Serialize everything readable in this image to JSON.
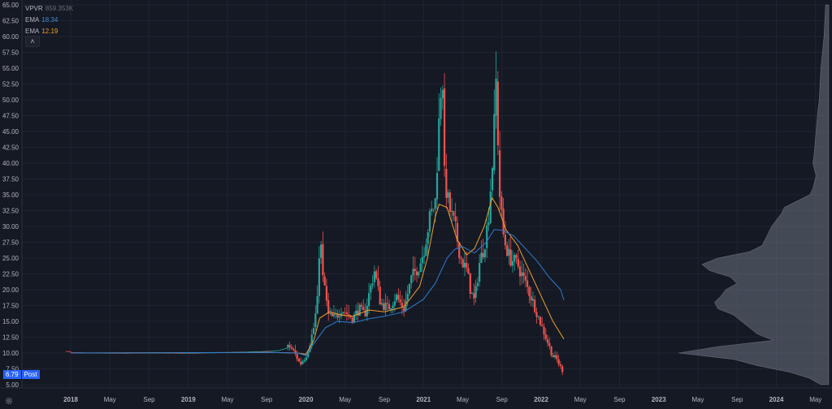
{
  "legend": {
    "vpvr": {
      "label": "VPVR",
      "value": "859.353K"
    },
    "ema_fast": {
      "label": "EMA",
      "value": "18.34"
    },
    "ema_slow": {
      "label": "EMA",
      "value": "12.19"
    },
    "collapse_icon": "chevron-up-icon"
  },
  "last_price": {
    "price": "6.79",
    "session": "Post"
  },
  "colors": {
    "background": "#151924",
    "grid": "#1f2431",
    "axis_text": "#b2b5be",
    "up": "#26a69a",
    "down": "#ef5350",
    "ema_fast": "#2e7bd1",
    "ema_slow": "#f2a12e",
    "volume_profile": "#6b7180",
    "badge": "#2962ff"
  },
  "chart_data": {
    "type": "candlestick",
    "y_axis": {
      "ylim": [
        5,
        65
      ],
      "ticks": [
        "5.00",
        "7.50",
        "10.00",
        "12.50",
        "15.00",
        "17.50",
        "20.00",
        "22.50",
        "25.00",
        "27.50",
        "30.00",
        "32.50",
        "35.00",
        "37.50",
        "40.00",
        "42.50",
        "45.00",
        "47.50",
        "50.00",
        "52.50",
        "55.00",
        "57.50",
        "60.00",
        "62.50",
        "65.00"
      ]
    },
    "x_axis": {
      "ticks": [
        "2018",
        "May",
        "Sep",
        "2019",
        "May",
        "Sep",
        "2020",
        "May",
        "Sep",
        "2021",
        "May",
        "Sep",
        "2022",
        "May",
        "Sep",
        "2023",
        "May",
        "Sep",
        "2024",
        "May"
      ],
      "tick_index": [
        0,
        1,
        2,
        3,
        4,
        5,
        6,
        7,
        8,
        9,
        10,
        11,
        12,
        13,
        14,
        15,
        16,
        17,
        18,
        19
      ]
    },
    "ohlc_keypoints": [
      [
        -0.1,
        10.3
      ],
      [
        0.0,
        10.1
      ],
      [
        1.0,
        10.0
      ],
      [
        2.0,
        10.05
      ],
      [
        3.0,
        10.0
      ],
      [
        4.0,
        10.1
      ],
      [
        5.0,
        10.3
      ],
      [
        5.3,
        10.4
      ],
      [
        5.6,
        11.0
      ],
      [
        5.75,
        9.6
      ],
      [
        5.85,
        8.2
      ],
      [
        6.0,
        9.5
      ],
      [
        6.1,
        11.5
      ],
      [
        6.2,
        14.0
      ],
      [
        6.3,
        18.5
      ],
      [
        6.36,
        30.0
      ],
      [
        6.42,
        22.0
      ],
      [
        6.5,
        20.0
      ],
      [
        6.55,
        16.0
      ],
      [
        6.7,
        15.5
      ],
      [
        6.8,
        16.0
      ],
      [
        6.9,
        17.0
      ],
      [
        7.0,
        16.5
      ],
      [
        7.2,
        15.5
      ],
      [
        7.35,
        17.0
      ],
      [
        7.5,
        16.0
      ],
      [
        7.6,
        19.0
      ],
      [
        7.75,
        23.0
      ],
      [
        7.9,
        18.0
      ],
      [
        8.1,
        17.0
      ],
      [
        8.3,
        19.0
      ],
      [
        8.5,
        17.0
      ],
      [
        8.7,
        22.0
      ],
      [
        8.9,
        24.0
      ],
      [
        9.0,
        26.0
      ],
      [
        9.15,
        31.0
      ],
      [
        9.3,
        34.0
      ],
      [
        9.4,
        47.0
      ],
      [
        9.48,
        56.0
      ],
      [
        9.53,
        38.0
      ],
      [
        9.65,
        33.0
      ],
      [
        9.8,
        30.0
      ],
      [
        9.95,
        25.0
      ],
      [
        10.1,
        23.0
      ],
      [
        10.2,
        20.0
      ],
      [
        10.3,
        18.0
      ],
      [
        10.42,
        24.0
      ],
      [
        10.55,
        27.0
      ],
      [
        10.65,
        31.0
      ],
      [
        10.78,
        42.0
      ],
      [
        10.85,
        53.0
      ],
      [
        10.95,
        34.0
      ],
      [
        11.05,
        28.0
      ],
      [
        11.2,
        25.0
      ],
      [
        11.4,
        24.0
      ],
      [
        11.6,
        21.0
      ],
      [
        11.8,
        18.0
      ],
      [
        12.0,
        14.5
      ],
      [
        12.15,
        12.0
      ],
      [
        12.3,
        9.5
      ],
      [
        12.4,
        9.0
      ],
      [
        12.5,
        7.7
      ],
      [
        12.55,
        7.2
      ],
      [
        12.58,
        6.79
      ]
    ],
    "ema_fast_points": [
      [
        0.0,
        10.0
      ],
      [
        5.0,
        10.1
      ],
      [
        5.8,
        10.0
      ],
      [
        6.0,
        9.6
      ],
      [
        6.2,
        11.5
      ],
      [
        6.5,
        14.0
      ],
      [
        6.8,
        15.0
      ],
      [
        7.2,
        14.8
      ],
      [
        7.6,
        15.4
      ],
      [
        8.0,
        15.8
      ],
      [
        8.5,
        16.5
      ],
      [
        9.0,
        18.5
      ],
      [
        9.3,
        21.0
      ],
      [
        9.6,
        25.0
      ],
      [
        9.8,
        26.4
      ],
      [
        10.0,
        26.8
      ],
      [
        10.3,
        25.8
      ],
      [
        10.6,
        27.5
      ],
      [
        10.8,
        29.5
      ],
      [
        11.0,
        29.4
      ],
      [
        11.3,
        28.5
      ],
      [
        11.6,
        26.5
      ],
      [
        11.9,
        24.5
      ],
      [
        12.2,
        22.0
      ],
      [
        12.5,
        20.0
      ],
      [
        12.58,
        18.34
      ]
    ],
    "ema_slow_points": [
      [
        0.0,
        10.0
      ],
      [
        5.0,
        10.1
      ],
      [
        5.8,
        10.0
      ],
      [
        6.0,
        9.8
      ],
      [
        6.2,
        12.0
      ],
      [
        6.35,
        15.5
      ],
      [
        6.6,
        16.5
      ],
      [
        6.9,
        16.0
      ],
      [
        7.2,
        15.8
      ],
      [
        7.6,
        16.8
      ],
      [
        8.0,
        16.5
      ],
      [
        8.5,
        17.3
      ],
      [
        8.9,
        20.5
      ],
      [
        9.1,
        25.0
      ],
      [
        9.3,
        31.5
      ],
      [
        9.4,
        33.5
      ],
      [
        9.6,
        33.0
      ],
      [
        9.85,
        28.0
      ],
      [
        10.1,
        25.5
      ],
      [
        10.3,
        26.5
      ],
      [
        10.55,
        30.0
      ],
      [
        10.75,
        34.5
      ],
      [
        10.9,
        33.0
      ],
      [
        11.1,
        29.5
      ],
      [
        11.4,
        27.0
      ],
      [
        11.7,
        23.0
      ],
      [
        12.0,
        19.0
      ],
      [
        12.3,
        15.0
      ],
      [
        12.58,
        12.19
      ]
    ],
    "volume_profile": {
      "price_levels": [
        5,
        6,
        7,
        8,
        9,
        10,
        11,
        12,
        13,
        14,
        15,
        16,
        17,
        18,
        19,
        20,
        21,
        22,
        23,
        24,
        25,
        26,
        27,
        28,
        29,
        30,
        31,
        32,
        33,
        34,
        35,
        36,
        38,
        40,
        42,
        45,
        48,
        50,
        55,
        60,
        65
      ],
      "relative_volume": [
        0.05,
        0.12,
        0.25,
        0.45,
        0.6,
        0.95,
        0.7,
        0.35,
        0.45,
        0.5,
        0.55,
        0.6,
        0.7,
        0.72,
        0.68,
        0.65,
        0.58,
        0.62,
        0.75,
        0.8,
        0.7,
        0.5,
        0.42,
        0.4,
        0.38,
        0.36,
        0.33,
        0.3,
        0.28,
        0.2,
        0.12,
        0.1,
        0.08,
        0.1,
        0.09,
        0.08,
        0.07,
        0.06,
        0.05,
        0.03,
        0.02
      ]
    }
  }
}
